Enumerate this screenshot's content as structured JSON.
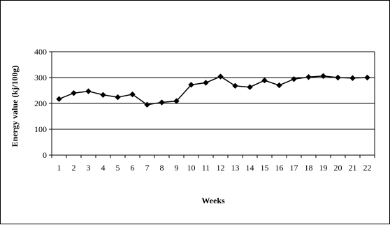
{
  "chart_data": {
    "type": "line",
    "title": "",
    "xlabel": "Weeks",
    "ylabel": "Energy value (kj/100g)",
    "ylim": [
      0,
      400
    ],
    "yticks": [
      0,
      100,
      200,
      300,
      400
    ],
    "grid": "horizontal",
    "legend": "none",
    "categories": [
      "1",
      "2",
      "3",
      "4",
      "5",
      "6",
      "7",
      "8",
      "9",
      "10",
      "11",
      "12",
      "13",
      "14",
      "15",
      "16",
      "17",
      "18",
      "19",
      "20",
      "21",
      "22"
    ],
    "series": [
      {
        "values": [
          217,
          240,
          247,
          233,
          224,
          235,
          195,
          204,
          209,
          272,
          280,
          304,
          268,
          263,
          289,
          270,
          294,
          302,
          306,
          300,
          298,
          300
        ],
        "color": "#000000",
        "marker": "diamond"
      }
    ]
  }
}
